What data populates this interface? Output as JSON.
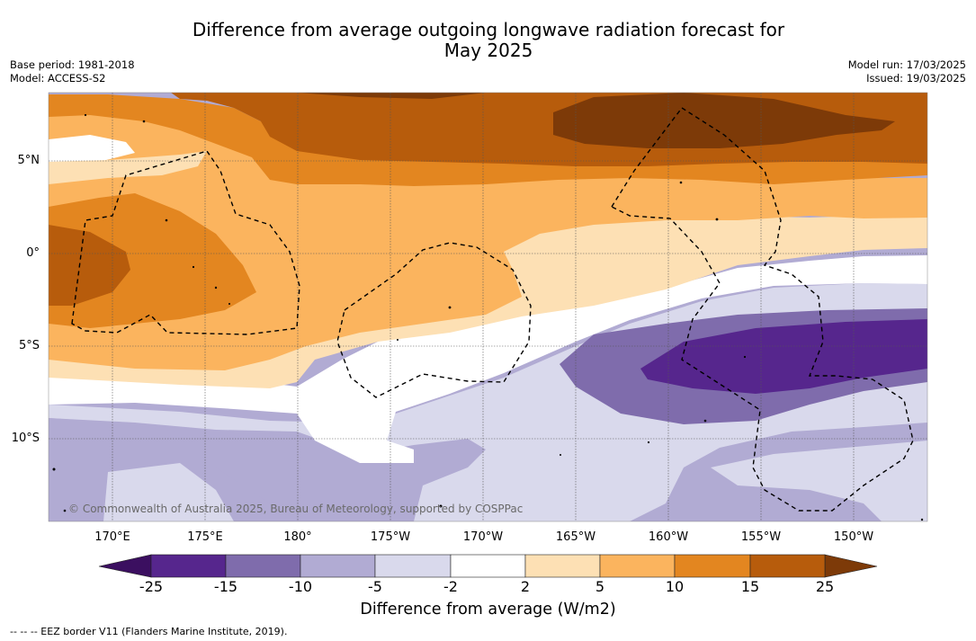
{
  "title_line1": "Difference from average outgoing longwave radiation forecast for",
  "title_line2": "May 2025",
  "base_period": "Base period: 1981-2018",
  "model": "Model: ACCESS-S2",
  "model_run": "Model run: 17/03/2025",
  "issued": "Issued: 19/03/2025",
  "copyright": "© Commonwealth of Australia 2025, Bureau of Meteorology, supported by COSPPac",
  "lat_labels": [
    "5°N",
    "0°",
    "5°S",
    "10°S"
  ],
  "lon_labels": [
    "170°E",
    "175°E",
    "180°",
    "175°W",
    "170°W",
    "165°W",
    "160°W",
    "155°W",
    "150°W"
  ],
  "colorbar": {
    "title": "Difference from average (W/m2)",
    "ticks": [
      "-25",
      "-15",
      "-10",
      "-5",
      "-2",
      "2",
      "5",
      "10",
      "15",
      "25"
    ],
    "colors": [
      "#56268d",
      "#7f6cac",
      "#b1abd3",
      "#d9d9ec",
      "#ffffff",
      "#fde0b4",
      "#fbb45e",
      "#e38620",
      "#b75c0c"
    ],
    "extend_low_color": "#3b0f60",
    "extend_high_color": "#7d3a08"
  },
  "footnote": "--  --  -- EEZ border V11 (Flanders Marine Institute, 2019)."
}
